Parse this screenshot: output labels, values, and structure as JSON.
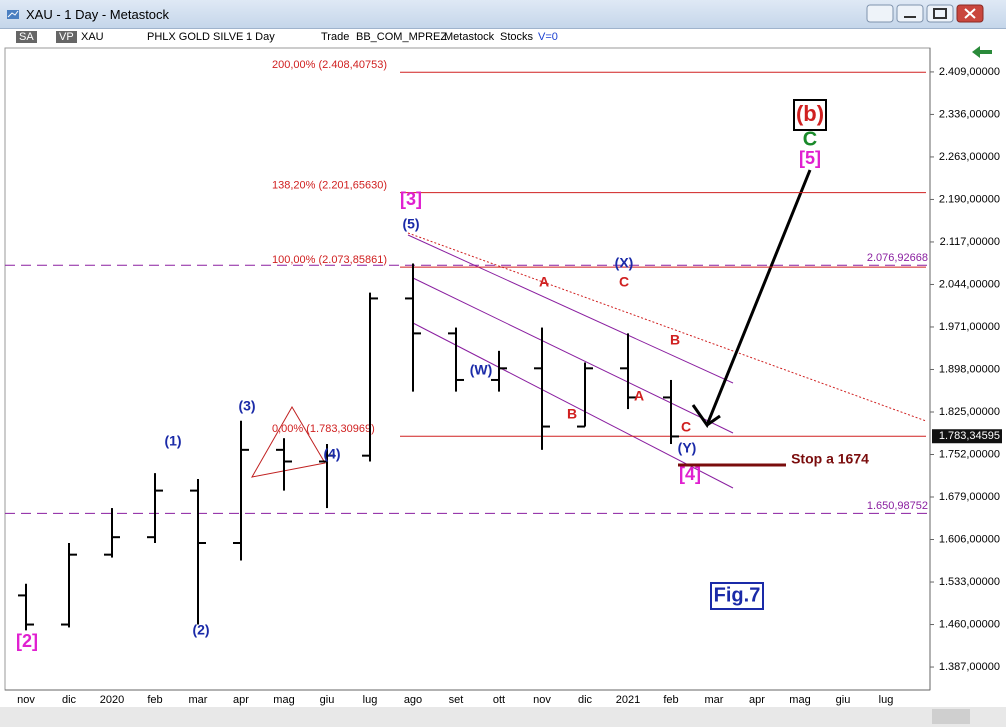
{
  "window": {
    "title": "XAU - 1 Day - Metastock"
  },
  "toolbar": {
    "items": [
      "SA",
      "VP",
      "XAU",
      "PHLX GOLD SILVE",
      "1 Day",
      "Trade",
      "BB_COM_MPREZ",
      "Metastock",
      "Stocks",
      "V=0"
    ]
  },
  "chart_data": {
    "type": "ohlc",
    "color": "#000000",
    "categories": [
      "nov",
      "dic",
      "2020",
      "feb",
      "mar",
      "apr",
      "mag",
      "giu",
      "lug",
      "ago",
      "set",
      "ott",
      "nov",
      "dic",
      "2021",
      "feb",
      "mar",
      "apr",
      "mag",
      "giu",
      "lug"
    ],
    "open": [
      1510,
      1460,
      1580,
      1610,
      1690,
      1600,
      1760,
      1740,
      1750,
      2020,
      1960,
      1880,
      1900,
      1800,
      1900,
      1850,
      null,
      null,
      null,
      null,
      null
    ],
    "high": [
      1530,
      1600,
      1660,
      1720,
      1710,
      1810,
      1780,
      1770,
      2030,
      2080,
      1970,
      1930,
      1970,
      1910,
      1960,
      1880,
      null,
      null,
      null,
      null,
      null
    ],
    "low": [
      1450,
      1455,
      1575,
      1600,
      1460,
      1570,
      1690,
      1660,
      1740,
      1860,
      1860,
      1860,
      1760,
      1800,
      1830,
      1770,
      null,
      null,
      null,
      null,
      null
    ],
    "close": [
      1460,
      1580,
      1610,
      1690,
      1600,
      1760,
      1740,
      1750,
      2020,
      1960,
      1880,
      1900,
      1800,
      1900,
      1850,
      1783,
      null,
      null,
      null,
      null,
      null
    ],
    "ylim": [
      1351,
      2481
    ],
    "yticks": [
      {
        "value": 2409,
        "label": "2.409,00000"
      },
      {
        "value": 2336,
        "label": "2.336,00000"
      },
      {
        "value": 2263,
        "label": "2.263,00000"
      },
      {
        "value": 2190,
        "label": "2.190,00000"
      },
      {
        "value": 2117,
        "label": "2.117,00000"
      },
      {
        "value": 2044,
        "label": "2.044,00000"
      },
      {
        "value": 1971,
        "label": "1.971,00000"
      },
      {
        "value": 1898,
        "label": "1.898,00000"
      },
      {
        "value": 1825,
        "label": "1.825,00000"
      },
      {
        "value": 1752,
        "label": "1.752,00000"
      },
      {
        "value": 1679,
        "label": "1.679,00000"
      },
      {
        "value": 1606,
        "label": "1.606,00000"
      },
      {
        "value": 1533,
        "label": "1.533,00000"
      },
      {
        "value": 1460,
        "label": "1.460,00000"
      },
      {
        "value": 1387,
        "label": "1.387,00000"
      }
    ],
    "fib_levels": [
      {
        "value": 2408.40753,
        "label": "200,00% (2.408,40753)"
      },
      {
        "value": 2201.6563,
        "label": "138,20% (2.201,65630)"
      },
      {
        "value": 2073.85861,
        "label": "100,00% (2.073,85861)"
      },
      {
        "value": 1783.30969,
        "label": "0,00% (1.783,30969)"
      }
    ],
    "dashed_levels": [
      {
        "value": 2076.92668,
        "label": "2.076,92668"
      },
      {
        "value": 1650.98752,
        "label": "1.650,98752"
      }
    ],
    "last_price": {
      "value": 1783.34595,
      "label": "1.783,34595"
    },
    "annotations": [
      "[2]",
      "(1)",
      "(2)",
      "(3)",
      "(4)",
      "[3]",
      "(5)",
      "(W)",
      "A",
      "B",
      "(X)",
      "C",
      "A",
      "B",
      "C",
      "(Y)",
      "[4]",
      "Stop a 1674",
      "(b)",
      "C",
      "[5]",
      "Fig.7"
    ]
  }
}
